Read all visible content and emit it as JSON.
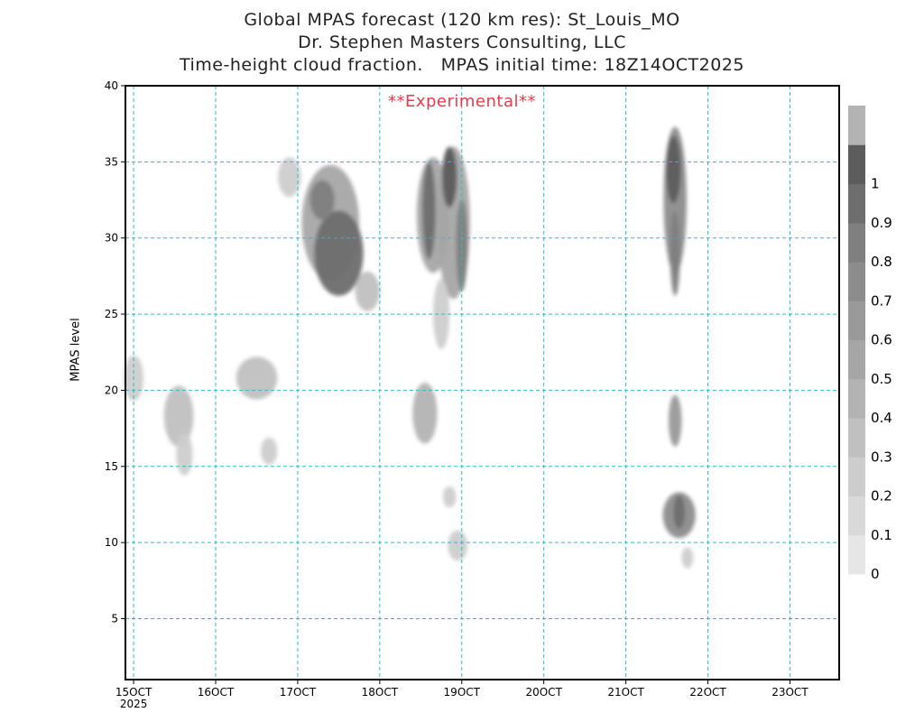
{
  "titles": {
    "line1": "Global MPAS forecast (120 km res): St_Louis_MO",
    "line2": "Dr. Stephen Masters Consulting, LLC",
    "line3": "Time-height cloud fraction.   MPAS initial time: 18Z14OCT2025"
  },
  "annotation": "**Experimental**",
  "chart_data": {
    "type": "heatmap",
    "title": "Time-height cloud fraction.",
    "ylabel": "MPAS level",
    "xlabel": "",
    "x_tick_labels": [
      "15OCT",
      "16OCT",
      "17OCT",
      "18OCT",
      "19OCT",
      "20OCT",
      "21OCT",
      "22OCT",
      "23OCT"
    ],
    "x_first_tick_year": "2025",
    "x_range_days": [
      14.9,
      23.6
    ],
    "ylim": [
      1,
      40
    ],
    "y_ticks": [
      5,
      10,
      15,
      20,
      25,
      30,
      35,
      40
    ],
    "grid": true,
    "colorbar": {
      "levels": [
        0,
        0.1,
        0.2,
        0.3,
        0.4,
        0.5,
        0.6,
        0.7,
        0.8,
        0.9,
        1
      ],
      "colors": [
        "#e6e6e6",
        "#d9d9d9",
        "#cdcdcd",
        "#c0c0c0",
        "#b3b3b3",
        "#a6a6a6",
        "#999999",
        "#8c8c8c",
        "#7f7f7f",
        "#6e6e6e",
        "#5c5c5c",
        "#b3b3b3"
      ]
    },
    "cloud_features": [
      {
        "day": 15.0,
        "level": 20.8,
        "dx": 0.12,
        "dy": 1.5,
        "fraction": 0.12
      },
      {
        "day": 15.55,
        "level": 18.3,
        "dx": 0.18,
        "dy": 2.0,
        "fraction": 0.22
      },
      {
        "day": 15.62,
        "level": 15.8,
        "dx": 0.1,
        "dy": 1.4,
        "fraction": 0.18
      },
      {
        "day": 16.5,
        "level": 20.8,
        "dx": 0.25,
        "dy": 1.4,
        "fraction": 0.2
      },
      {
        "day": 16.65,
        "level": 16.0,
        "dx": 0.1,
        "dy": 0.9,
        "fraction": 0.12
      },
      {
        "day": 16.9,
        "level": 34.0,
        "dx": 0.14,
        "dy": 1.3,
        "fraction": 0.1
      },
      {
        "day": 17.4,
        "level": 31.0,
        "dx": 0.35,
        "dy": 3.8,
        "fraction": 0.4
      },
      {
        "day": 17.5,
        "level": 29.0,
        "dx": 0.3,
        "dy": 2.8,
        "fraction": 0.85
      },
      {
        "day": 17.3,
        "level": 32.5,
        "dx": 0.15,
        "dy": 1.3,
        "fraction": 0.75
      },
      {
        "day": 17.85,
        "level": 26.5,
        "dx": 0.15,
        "dy": 1.3,
        "fraction": 0.25
      },
      {
        "day": 18.65,
        "level": 31.5,
        "dx": 0.2,
        "dy": 3.8,
        "fraction": 0.45
      },
      {
        "day": 18.6,
        "level": 31.8,
        "dx": 0.08,
        "dy": 3.2,
        "fraction": 0.85
      },
      {
        "day": 18.9,
        "level": 31.0,
        "dx": 0.2,
        "dy": 5.0,
        "fraction": 0.45
      },
      {
        "day": 18.85,
        "level": 34.0,
        "dx": 0.09,
        "dy": 2.0,
        "fraction": 0.9
      },
      {
        "day": 19.0,
        "level": 29.5,
        "dx": 0.07,
        "dy": 3.0,
        "fraction": 0.75
      },
      {
        "day": 18.75,
        "level": 25.0,
        "dx": 0.1,
        "dy": 2.3,
        "fraction": 0.12
      },
      {
        "day": 18.55,
        "level": 18.5,
        "dx": 0.15,
        "dy": 2.0,
        "fraction": 0.3
      },
      {
        "day": 18.85,
        "level": 13.0,
        "dx": 0.08,
        "dy": 0.7,
        "fraction": 0.15
      },
      {
        "day": 18.95,
        "level": 9.8,
        "dx": 0.12,
        "dy": 1.0,
        "fraction": 0.12
      },
      {
        "day": 21.6,
        "level": 32.5,
        "dx": 0.14,
        "dy": 4.8,
        "fraction": 0.6
      },
      {
        "day": 21.58,
        "level": 34.5,
        "dx": 0.09,
        "dy": 2.2,
        "fraction": 0.92
      },
      {
        "day": 21.6,
        "level": 29.0,
        "dx": 0.06,
        "dy": 2.8,
        "fraction": 0.75
      },
      {
        "day": 21.6,
        "level": 18.0,
        "dx": 0.08,
        "dy": 1.7,
        "fraction": 0.5
      },
      {
        "day": 21.65,
        "level": 11.8,
        "dx": 0.2,
        "dy": 1.5,
        "fraction": 0.6
      },
      {
        "day": 21.65,
        "level": 12.0,
        "dx": 0.07,
        "dy": 1.1,
        "fraction": 0.85
      },
      {
        "day": 21.75,
        "level": 9.0,
        "dx": 0.07,
        "dy": 0.7,
        "fraction": 0.12
      }
    ]
  }
}
